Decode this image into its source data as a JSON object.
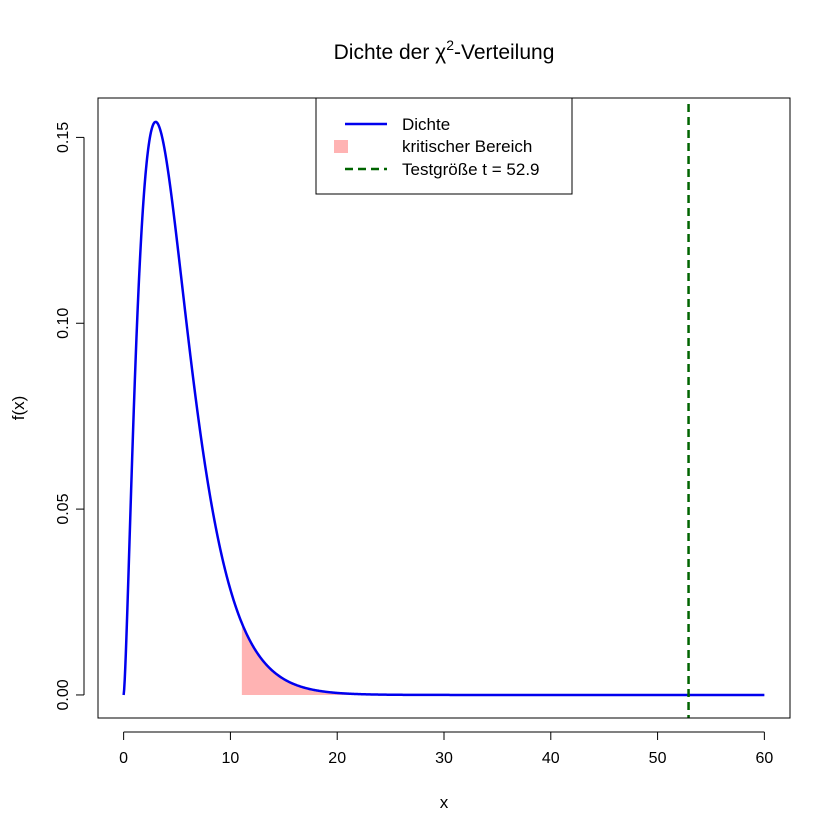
{
  "chart_data": {
    "type": "line",
    "title_prefix": "Dichte der ",
    "title_symbol": "χ",
    "title_superscript": "2",
    "title_suffix": "-Verteilung",
    "xlabel": "x",
    "ylabel": "f(x)",
    "xlim": [
      -2.4,
      62.4
    ],
    "ylim": [
      -0.0062,
      0.1606
    ],
    "x_ticks": [
      0,
      10,
      20,
      30,
      40,
      50,
      60
    ],
    "x_tick_labels": [
      "0",
      "10",
      "20",
      "30",
      "40",
      "50",
      "60"
    ],
    "y_ticks": [
      0.0,
      0.05,
      0.1,
      0.15
    ],
    "y_tick_labels": [
      "0.00",
      "0.05",
      "0.10",
      "0.15"
    ],
    "grid": false,
    "legend_position": "top-center",
    "density": {
      "degrees_of_freedom": 5,
      "x_range": [
        0,
        60
      ],
      "color": "#0000ee"
    },
    "critical_region": {
      "x_from": 11.07,
      "x_to": 60,
      "color": "#ffb3b3"
    },
    "test_statistic": {
      "x": 52.9,
      "color": "#006400",
      "style": "dashed"
    },
    "legend": [
      {
        "label": "Dichte",
        "symbol": "line",
        "color": "#0000ee"
      },
      {
        "label": "kritischer Bereich",
        "symbol": "box",
        "color": "#ffb3b3"
      },
      {
        "label": "Testgröße t = 52.9",
        "symbol": "dashed-line",
        "color": "#006400"
      }
    ]
  }
}
